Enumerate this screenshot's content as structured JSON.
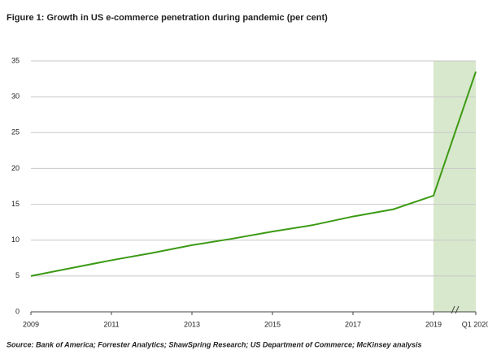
{
  "chart_data": {
    "type": "line",
    "title": "Figure 1: Growth in US e-commerce penetration during pandemic (per cent)",
    "source": "Source: Bank of America; Forrester Analytics; ShawSpring Research; US Department of Commerce; McKinsey analysis",
    "categories": [
      "2009",
      null,
      "2011",
      null,
      "2013",
      null,
      "2015",
      null,
      "2017",
      null,
      "2019",
      "Q1 2020"
    ],
    "series": [
      {
        "name": "US e-commerce penetration",
        "color": "#3c9a14",
        "values": [
          5.0,
          6.1,
          7.2,
          8.2,
          9.3,
          10.2,
          11.2,
          12.1,
          13.3,
          14.3,
          16.2,
          33.5
        ]
      }
    ],
    "highlight_color": "#d8e8cc",
    "ylim": [
      0,
      35
    ],
    "yticks": [
      0,
      5,
      10,
      15,
      20,
      25,
      30,
      35
    ],
    "grid": true
  }
}
